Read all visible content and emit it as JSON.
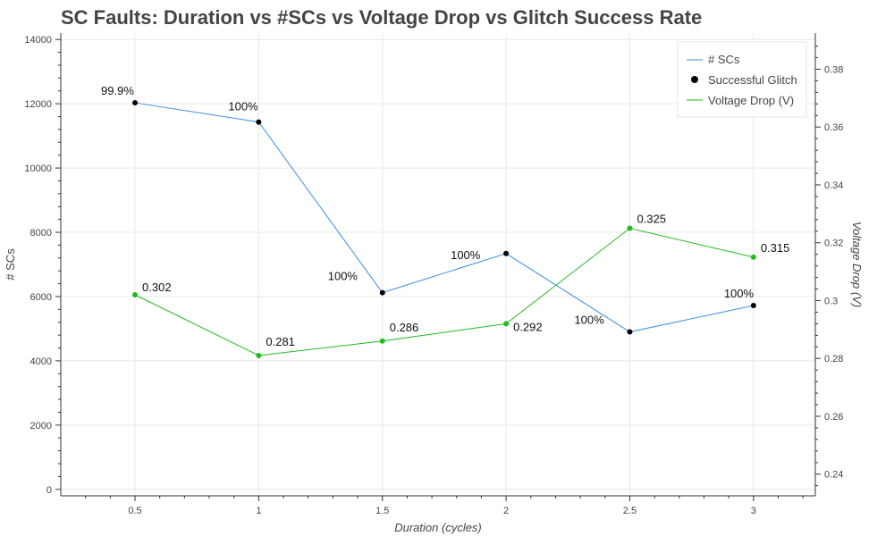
{
  "chart_data": {
    "type": "line",
    "title": "SC Faults: Duration vs #SCs vs Voltage Drop vs Glitch Success Rate",
    "xlabel": "Duration (cycles)",
    "ylabel": "# SCs",
    "y2label": "Voltage Drop (V)",
    "x": [
      0.5,
      1,
      1.5,
      2,
      2.5,
      3
    ],
    "x_ticks": [
      "0.5",
      "1",
      "1.5",
      "2",
      "2.5",
      "3"
    ],
    "xlim": [
      0.2,
      3.25
    ],
    "ylim": [
      -200,
      14200
    ],
    "y_ticks": [
      "0",
      "2000",
      "4000",
      "6000",
      "8000",
      "10000",
      "12000",
      "14000"
    ],
    "y2lim": [
      0.2325,
      0.3925
    ],
    "y2_ticks": [
      "0.24",
      "0.26",
      "0.28",
      "0.3",
      "0.32",
      "0.34",
      "0.36",
      "0.38"
    ],
    "grid": true,
    "legend_position": "top-right",
    "series": [
      {
        "name": "# SCs",
        "axis": "left",
        "color": "#1f77b4",
        "line_color": "#3a8fe6",
        "values": [
          12030,
          11430,
          6120,
          7340,
          4900,
          5720
        ],
        "labels": [
          "99.9%",
          "100%",
          "100%",
          "100%",
          "100%",
          "100%"
        ]
      },
      {
        "name": "Successful Glitch",
        "marker_color": "#000000"
      },
      {
        "name": "Voltage Drop (V)",
        "axis": "right",
        "color": "#22bb22",
        "line_color": "#22bb22",
        "values": [
          0.302,
          0.281,
          0.286,
          0.292,
          0.325,
          0.315
        ],
        "labels": [
          "0.302",
          "0.281",
          "0.286",
          "0.292",
          "0.325",
          "0.315"
        ]
      }
    ]
  }
}
